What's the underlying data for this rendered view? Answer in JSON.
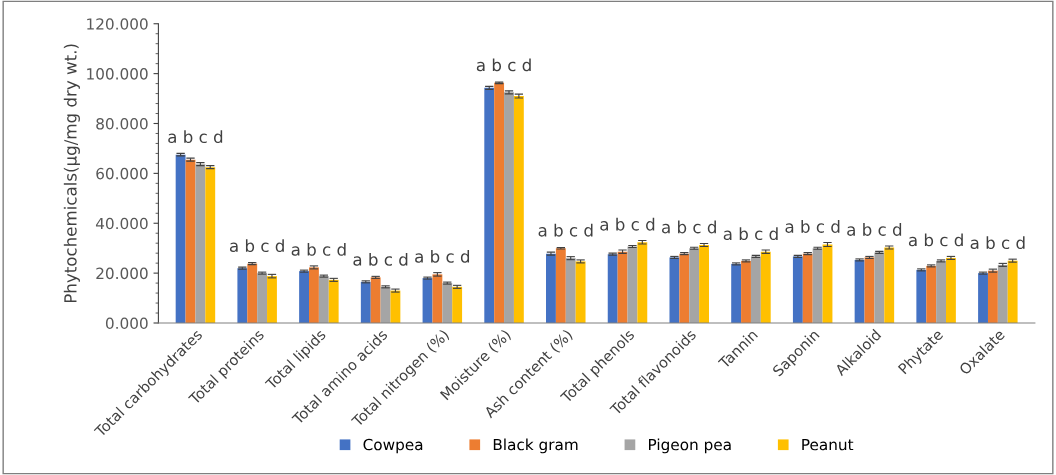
{
  "chart_data": {
    "type": "bar",
    "ylabel": "Phytochemicals(µg/mg dry wt.)",
    "categories": [
      "Total carbohydrates",
      "Total proteins",
      "Total lipids",
      "Total amino acids",
      "Total nitrogen (%)",
      "Moisture (%)",
      "Ash content (%)",
      "Total phenols",
      "Total flavonoids",
      "Tannin",
      "Saponin",
      "Alkaloid",
      "Phytate",
      "Oxalate"
    ],
    "series": [
      {
        "name": "Cowpea",
        "color": "#4472c4",
        "values": [
          67.5,
          22,
          20.8,
          16.5,
          18,
          94.3,
          27.8,
          27.6,
          26.3,
          23.7,
          26.7,
          25.3,
          21.3,
          20
        ],
        "errors": [
          0.5,
          0.4,
          0.4,
          0.4,
          0.4,
          0.6,
          0.6,
          0.4,
          0.4,
          0.4,
          0.4,
          0.4,
          0.4,
          0.4
        ]
      },
      {
        "name": "Black gram",
        "color": "#ed7d31",
        "values": [
          65.5,
          23.8,
          22.3,
          18.3,
          19.5,
          96.3,
          30,
          28.6,
          27.8,
          24.9,
          27.8,
          26.3,
          22.9,
          21
        ],
        "errors": [
          0.6,
          0.4,
          0.6,
          0.4,
          0.7,
          0.3,
          0.3,
          0.7,
          0.4,
          0.4,
          0.4,
          0.4,
          0.4,
          0.6
        ]
      },
      {
        "name": "Pigeon pea",
        "color": "#a5a5a5",
        "values": [
          63.7,
          20,
          18.8,
          14.5,
          16,
          92.5,
          26,
          30.7,
          30,
          26.7,
          30,
          28.3,
          24.9,
          23.3
        ],
        "errors": [
          0.6,
          0.4,
          0.4,
          0.4,
          0.4,
          0.6,
          0.6,
          0.4,
          0.4,
          0.4,
          0.4,
          0.4,
          0.4,
          0.6
        ]
      },
      {
        "name": "Peanut",
        "color": "#ffc000",
        "values": [
          62.5,
          18.8,
          17.3,
          13,
          14.5,
          91,
          24.7,
          32.4,
          31.3,
          28.6,
          31.5,
          30.3,
          26.1,
          25
        ],
        "errors": [
          0.6,
          0.7,
          0.6,
          0.6,
          0.6,
          0.8,
          0.6,
          0.7,
          0.6,
          0.7,
          0.8,
          0.6,
          0.6,
          0.6
        ]
      }
    ],
    "ylim": [
      0,
      120
    ],
    "yticks": [
      {
        "value": 0,
        "label": "0.000"
      },
      {
        "value": 20,
        "label": "20.000"
      },
      {
        "value": 40,
        "label": "40.000"
      },
      {
        "value": 60,
        "label": "60.000"
      },
      {
        "value": 80,
        "label": "80.000"
      },
      {
        "value": 100,
        "label": "100.000"
      },
      {
        "value": 120,
        "label": "120.000"
      }
    ],
    "annotations": [
      {
        "text": "a b c d",
        "x": "Total carbohydrates",
        "y": 67.5
      },
      {
        "text": "a b c d",
        "x": "Total proteins",
        "y": 23.8
      },
      {
        "text": "a b c d",
        "x": "Total lipids",
        "y": 22.3
      },
      {
        "text": "a b c d",
        "x": "Total amino acids",
        "y": 18.3
      },
      {
        "text": "a b c d",
        "x": "Total nitrogen (%)",
        "y": 19.5
      },
      {
        "text": "a b c d",
        "x": "Moisture (%)",
        "y": 96.3
      },
      {
        "text": "a b c d",
        "x": "Ash content (%)",
        "y": 30
      },
      {
        "text": "a b c d",
        "x": "Total phenols",
        "y": 32.4
      },
      {
        "text": "a b c d",
        "x": "Total flavonoids",
        "y": 31.3
      },
      {
        "text": "a b c d",
        "x": "Tannin",
        "y": 28.6
      },
      {
        "text": "a b c d",
        "x": "Saponin",
        "y": 31.5
      },
      {
        "text": "a b c d",
        "x": "Alkaloid",
        "y": 30.3
      },
      {
        "text": "a b c d",
        "x": "Phytate",
        "y": 26.1
      },
      {
        "text": "a b c d",
        "x": "Oxalate",
        "y": 25
      }
    ],
    "grid": false,
    "legend": "bottom"
  }
}
